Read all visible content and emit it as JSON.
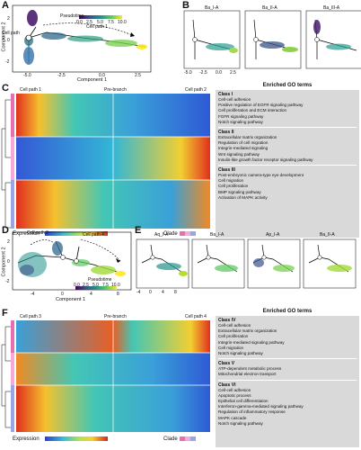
{
  "panels": {
    "A": {
      "label": "A",
      "xlabel": "Component 1",
      "ylabel": "Component 2",
      "annotations": [
        "Cell path 2",
        "Cell path 1"
      ],
      "legend_title": "Pseudotime",
      "legend_ticks": [
        "0.0",
        "2.5",
        "5.0",
        "7.5",
        "10.0"
      ],
      "x_ticks": [
        "-5.0",
        "-2.5",
        "0.0",
        "2.5"
      ],
      "y_ticks": [
        "2",
        "0",
        "-2"
      ]
    },
    "B": {
      "label": "B",
      "subtitles": [
        "Ba_I-A",
        "Ba_II-A",
        "Ba_III-A"
      ],
      "x_ticks": [
        "-5.0",
        "-2.5",
        "0.0",
        "2.5"
      ]
    },
    "C": {
      "label": "C",
      "left_label": "Cell path 1",
      "mid_label": "Pre-branch",
      "right_label": "Cell path 2",
      "go_header": "Enriched GO terms",
      "expression_label": "Expression",
      "clade_label": "Clade",
      "go_classes": [
        {
          "title": "Class I",
          "terms": [
            "Cell-cell adhesion",
            "Positive regulation of EGFR signaling pathway",
            "Cell proliferation and ECM interaction",
            "FGFR signaling pathway",
            "Notch signaling pathway"
          ]
        },
        {
          "title": "Class II",
          "terms": [
            "Extracellular matrix organization",
            "Regulation of cell migration",
            "Integrin-mediated signaling",
            "Wnt signaling pathway",
            "Insulin-like growth factor receptor signaling pathway"
          ]
        },
        {
          "title": "Class III",
          "terms": [
            "Post-embryonic camera-type eye development",
            "Cell migration",
            "Cell proliferation",
            "BMP signaling pathway",
            "Activation of MAPK activity"
          ]
        }
      ]
    },
    "D": {
      "label": "D",
      "xlabel": "Component 1",
      "ylabel": "Component 2",
      "annotations": [
        "Cell path 3",
        "Cell path 4"
      ],
      "legend_title": "Pseudotime",
      "legend_ticks": [
        "0.0",
        "2.5",
        "5.0",
        "7.5",
        "10.0"
      ],
      "x_ticks": [
        "-4",
        "0",
        "4",
        "8"
      ],
      "y_ticks": [
        "2",
        "0",
        "-2"
      ]
    },
    "E": {
      "label": "E",
      "subtitles": [
        "Aq_I-A",
        "Ba_I-A",
        "Ap_I-A",
        "Ba_II-A"
      ],
      "x_ticks": [
        "-4",
        "0",
        "4",
        "8"
      ]
    },
    "F": {
      "label": "F",
      "left_label": "Cell path 3",
      "mid_label": "Pre-branch",
      "right_label": "Cell path 4",
      "go_header": "Enriched GO terms",
      "expression_label": "Expression",
      "clade_label": "Clade",
      "go_classes": [
        {
          "title": "Class IV",
          "terms": [
            "Cell-cell adhesion",
            "Extracellular matrix organization",
            "Cell proliferation",
            "Integrin-mediated signaling pathway",
            "Cell migration",
            "Notch signaling pathway"
          ]
        },
        {
          "title": "Class V",
          "terms": [
            "ATP-dependent metabolic process",
            "Mitochondrial electron transport"
          ]
        },
        {
          "title": "Class VI",
          "terms": [
            "Cell-cell adhesion",
            "Apoptotic process",
            "Epithelial cell differentiation",
            "Interferon-gamma-mediated signaling pathway",
            "Regulation of inflammatory response",
            "MAPK cascade",
            "Notch signaling pathway"
          ]
        }
      ]
    }
  },
  "colors": {
    "pseudotime_low": "#440154",
    "pseudotime_high": "#fde725",
    "expr_low": "#2b3fd0",
    "expr_high": "#d7261e",
    "go_box": "#d9d9d9"
  }
}
